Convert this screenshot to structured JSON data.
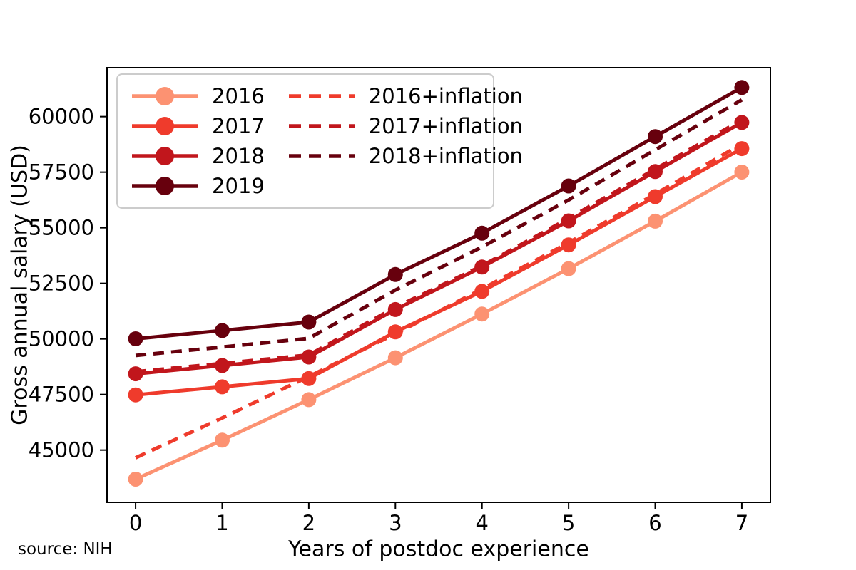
{
  "figure": {
    "source_note": "source: NIH"
  },
  "chart_data": {
    "type": "line",
    "title": "",
    "xlabel": "Years of postdoc experience",
    "ylabel": "Gross annual salary (USD)",
    "x": [
      0,
      1,
      2,
      3,
      4,
      5,
      6,
      7
    ],
    "xticks": [
      0,
      1,
      2,
      3,
      4,
      5,
      6,
      7
    ],
    "yticks": [
      45000,
      47500,
      50000,
      52500,
      55000,
      57500,
      60000
    ],
    "xlim": [
      -0.33,
      7.33
    ],
    "ylim": [
      42650,
      62200
    ],
    "grid": false,
    "legend_position": "upper left",
    "legend_columns": [
      [
        0,
        1,
        2,
        3
      ],
      [
        4,
        5,
        6
      ]
    ],
    "series": [
      {
        "name": "2016",
        "style": "solid",
        "marker": true,
        "color": "#fc9272",
        "values": [
          43692,
          45444,
          47268,
          49152,
          51120,
          53160,
          55296,
          57504
        ]
      },
      {
        "name": "2017",
        "style": "solid",
        "marker": true,
        "color": "#ef3b2c",
        "values": [
          47484,
          47844,
          48216,
          50316,
          52140,
          54228,
          56400,
          58560
        ]
      },
      {
        "name": "2018",
        "style": "solid",
        "marker": true,
        "color": "#c1161c",
        "values": [
          48432,
          48804,
          49188,
          51324,
          53232,
          55308,
          57528,
          59736
        ]
      },
      {
        "name": "2019",
        "style": "solid",
        "marker": true,
        "color": "#67000d",
        "values": [
          50004,
          50376,
          50760,
          52896,
          54756,
          56880,
          59100,
          61308
        ]
      },
      {
        "name": "2016+inflation",
        "style": "dashed",
        "marker": false,
        "color": "#ef3b2c",
        "values": [
          44653,
          46444,
          48308,
          50233,
          52245,
          54330,
          56513,
          58769
        ]
      },
      {
        "name": "2017+inflation",
        "style": "dashed",
        "marker": false,
        "color": "#c1161c",
        "values": [
          48529,
          48897,
          49277,
          51423,
          53287,
          55421,
          57641,
          59848
        ]
      },
      {
        "name": "2018+inflation",
        "style": "dashed",
        "marker": false,
        "color": "#67000d",
        "values": [
          49255,
          49634,
          50024,
          52197,
          54137,
          56248,
          58506,
          60751
        ]
      }
    ]
  }
}
